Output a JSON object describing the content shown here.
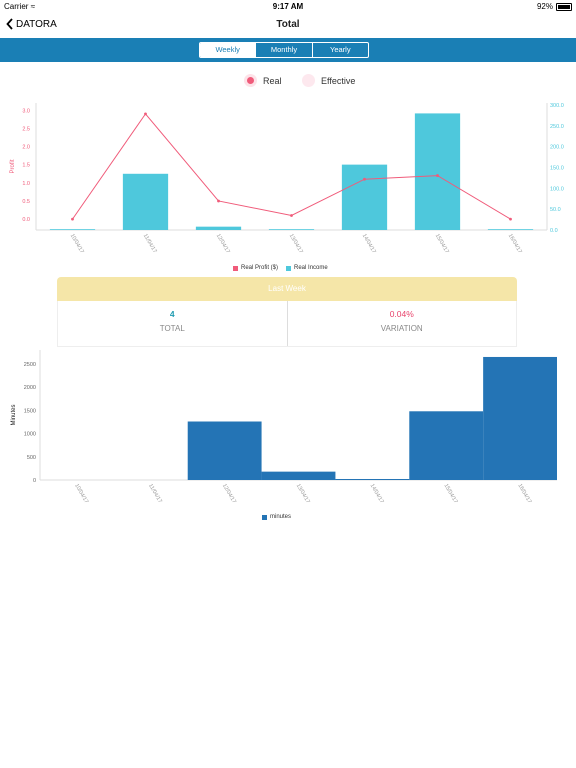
{
  "status_bar": {
    "carrier": "Carrier",
    "time": "9:17 AM",
    "battery": "92%"
  },
  "nav": {
    "back_label": "DATORA",
    "title": "Total"
  },
  "tabs": [
    {
      "label": "Weekly",
      "active": true
    },
    {
      "label": "Monthly",
      "active": false
    },
    {
      "label": "Yearly",
      "active": false
    }
  ],
  "toggles": {
    "real": "Real",
    "effective": "Effective"
  },
  "colors": {
    "accent": "#1a7fb5",
    "profit": "#f05b7a",
    "income": "#4ec8dc",
    "minutes": "#2474b5",
    "lastweek_header": "#f5e6a8",
    "total_value": "#1f9bb0",
    "variation_value": "#e8436b"
  },
  "chart_data": [
    {
      "type": "bar",
      "categories": [
        "10/04/17",
        "11/04/17",
        "12/04/17",
        "13/04/17",
        "14/04/17",
        "15/04/17",
        "16/04/17"
      ],
      "series": [
        {
          "name": "Real Profit ($)",
          "type": "line",
          "axis": "left",
          "values": [
            0.0,
            2.9,
            0.5,
            0.1,
            1.1,
            1.2,
            0.0
          ]
        },
        {
          "name": "Real Income",
          "type": "bar",
          "axis": "right",
          "values": [
            0,
            135,
            8,
            0,
            157,
            280,
            0
          ]
        }
      ],
      "ylabel": "Profit",
      "ylim": [
        -0.3,
        3.2
      ],
      "y2lim": [
        0,
        305
      ],
      "yticks": [
        "0.0",
        "0.5",
        "1.0",
        "1.5",
        "2.0",
        "2.5",
        "3.0"
      ],
      "y2ticks": [
        "0.0",
        "50.0",
        "100.0",
        "150.0",
        "200.0",
        "250.0",
        "300.0"
      ],
      "grid": false,
      "legend": "bottom"
    },
    {
      "type": "bar",
      "categories": [
        "10/04/17",
        "11/04/17",
        "12/04/17",
        "13/04/17",
        "14/04/17",
        "15/04/17",
        "16/04/17"
      ],
      "series": [
        {
          "name": "minutes",
          "values": [
            0,
            0,
            1260,
            180,
            15,
            1480,
            2650
          ]
        }
      ],
      "ylabel": "Minutes",
      "ylim": [
        0,
        2800
      ],
      "yticks": [
        "0",
        "500",
        "1000",
        "1500",
        "2000",
        "2500"
      ],
      "grid": false,
      "legend": "bottom"
    }
  ],
  "last_week": {
    "title": "Last Week",
    "total_value": "4",
    "total_label": "TOTAL",
    "variation_value": "0.04%",
    "variation_label": "VARIATION"
  }
}
